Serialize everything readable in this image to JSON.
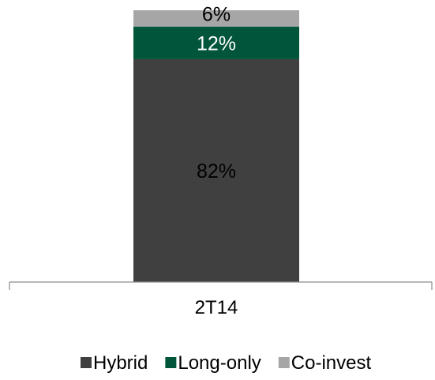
{
  "chart_data": {
    "type": "bar",
    "stacked": true,
    "categories": [
      "2T14"
    ],
    "series": [
      {
        "name": "Hybrid",
        "values": [
          82
        ],
        "label": "82%",
        "color": "#404040",
        "label_color": "#000000"
      },
      {
        "name": "Long-only",
        "values": [
          12
        ],
        "label": "12%",
        "color": "#00553a",
        "label_color": "#ffffff"
      },
      {
        "name": "Co-invest",
        "values": [
          6
        ],
        "label": "6%",
        "color": "#a6a6a6",
        "label_color": "#000000"
      }
    ],
    "ylim": [
      0,
      100
    ],
    "grid": false,
    "legend": "bottom"
  }
}
